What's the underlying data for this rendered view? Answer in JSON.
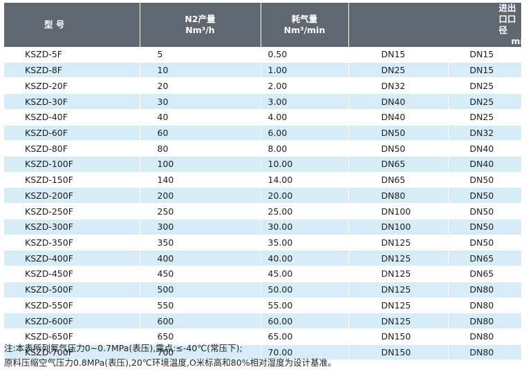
{
  "table": {
    "headers": {
      "model": "型 号",
      "n2_line1": "N2产量",
      "n2_line2": "Nm³/h",
      "gas_line1": "耗气量",
      "gas_line2": "Nm³/min",
      "port_line1": "进出口口径",
      "port_line2": "mm"
    },
    "rows": [
      {
        "model": "KSZD-5F",
        "n2": "5",
        "gas": "0.50",
        "inlet": "DN15",
        "outlet": "DN15"
      },
      {
        "model": "KSZD-8F",
        "n2": "10",
        "gas": "1.00",
        "inlet": "DN25",
        "outlet": "DN15"
      },
      {
        "model": "KSZD-20F",
        "n2": "20",
        "gas": "2.00",
        "inlet": "DN32",
        "outlet": "DN25"
      },
      {
        "model": "KSZD-30F",
        "n2": "30",
        "gas": "3.00",
        "inlet": "DN40",
        "outlet": "DN25"
      },
      {
        "model": "KSZD-40F",
        "n2": "40",
        "gas": "4.00",
        "inlet": "DN40",
        "outlet": "DN25"
      },
      {
        "model": "KSZD-60F",
        "n2": "60",
        "gas": "6.00",
        "inlet": "DN50",
        "outlet": "DN32"
      },
      {
        "model": "KSZD-80F",
        "n2": "80",
        "gas": "8.00",
        "inlet": "DN50",
        "outlet": "DN40"
      },
      {
        "model": "KSZD-100F",
        "n2": "100",
        "gas": "10.00",
        "inlet": "DN65",
        "outlet": "DN40"
      },
      {
        "model": "KSZD-150F",
        "n2": "140",
        "gas": "14.00",
        "inlet": "DN65",
        "outlet": "DN50"
      },
      {
        "model": "KSZD-200F",
        "n2": "200",
        "gas": "20.00",
        "inlet": "DN80",
        "outlet": "DN50"
      },
      {
        "model": "KSZD-250F",
        "n2": "250",
        "gas": "25.00",
        "inlet": "DN100",
        "outlet": "DN50"
      },
      {
        "model": "KSZD-300F",
        "n2": "300",
        "gas": "30.00",
        "inlet": "DN100",
        "outlet": "DN50"
      },
      {
        "model": "KSZD-350F",
        "n2": "350",
        "gas": "35.00",
        "inlet": "DN125",
        "outlet": "DN50"
      },
      {
        "model": "KSZD-400F",
        "n2": "400",
        "gas": "40.00",
        "inlet": "DN125",
        "outlet": "DN65"
      },
      {
        "model": "KSZD-450F",
        "n2": "450",
        "gas": "45.00",
        "inlet": "DN125",
        "outlet": "DN65"
      },
      {
        "model": "KSZD-500F",
        "n2": "500",
        "gas": "50.00",
        "inlet": "DN125",
        "outlet": "DN80"
      },
      {
        "model": "KSZD-550F",
        "n2": "550",
        "gas": "55.00",
        "inlet": "DN125",
        "outlet": "DN80"
      },
      {
        "model": "KSZD-600F",
        "n2": "600",
        "gas": "60.00",
        "inlet": "DN125",
        "outlet": "DN80"
      },
      {
        "model": "KSZD-650F",
        "n2": "650",
        "gas": "65.00",
        "inlet": "DN150",
        "outlet": "DN80"
      },
      {
        "model": "KSZD-700F",
        "n2": "700",
        "gas": "70.00",
        "inlet": "DN150",
        "outlet": "DN80"
      }
    ]
  },
  "notes": {
    "line1": "注:本表所列氮气压力0~0.7MPa(表压),露点:≤-40℃(常压下);",
    "line2": "原料压缩空气压力0.8MPa(表压),20℃环境温度,O米标高和80%相对湿度为设计基准。"
  },
  "colors": {
    "header_bg": "#5f6771",
    "stripe_bg": "#d6ecf7"
  }
}
